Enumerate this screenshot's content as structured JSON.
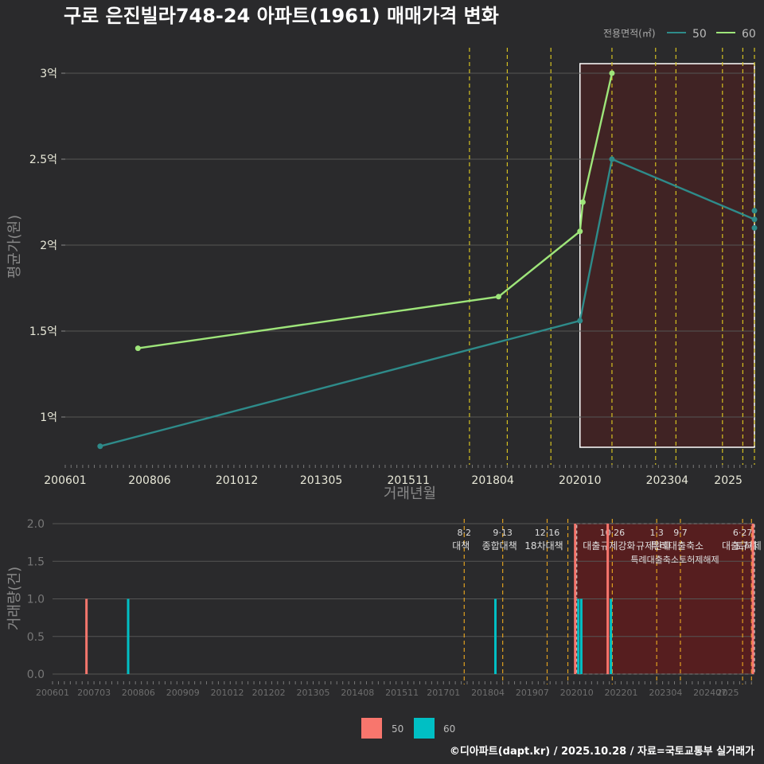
{
  "title": "구로 은진빌라748-24 아파트(1961) 매매가격 변화",
  "legend": {
    "title": "전용면적(㎡)",
    "items": [
      {
        "label": "50",
        "color": "#2e8b8a"
      },
      {
        "label": "60",
        "color": "#9ee57a"
      }
    ]
  },
  "footer": "©디아파트(dapt.kr) / 2025.10.28 / 자료=국토교통부 실거래가",
  "chart_data": [
    {
      "type": "line",
      "ylabel": "평균가(원)",
      "xlabel": "거래년월",
      "ylim": [
        0.75,
        3.1
      ],
      "yticks": [
        {
          "v": 1.0,
          "label": "1억"
        },
        {
          "v": 1.5,
          "label": "1.5억"
        },
        {
          "v": 2.0,
          "label": "2억"
        },
        {
          "v": 2.5,
          "label": "2.5억"
        },
        {
          "v": 3.0,
          "label": "3억"
        }
      ],
      "xrange": [
        "2006-01",
        "2025-10"
      ],
      "xticks": [
        "200601",
        "200806",
        "201012",
        "201305",
        "201511",
        "201804",
        "202010",
        "202304",
        "2025"
      ],
      "series": [
        {
          "name": "50",
          "color": "#2e8b8a",
          "points": [
            {
              "x": "2007-01",
              "y": 0.83
            },
            {
              "x": "2020-10",
              "y": 1.56
            },
            {
              "x": "2021-09",
              "y": 2.5
            },
            {
              "x": "2025-10",
              "y": 2.15
            }
          ],
          "extra_points": [
            {
              "x": "2025-10",
              "y": 2.2
            },
            {
              "x": "2025-10",
              "y": 2.1
            }
          ]
        },
        {
          "name": "60",
          "color": "#9ee57a",
          "points": [
            {
              "x": "2008-02",
              "y": 1.4
            },
            {
              "x": "2018-06",
              "y": 1.7
            },
            {
              "x": "2020-10",
              "y": 2.08
            },
            {
              "x": "2020-11",
              "y": 2.25
            },
            {
              "x": "2021-09",
              "y": 3.0
            }
          ]
        }
      ],
      "event_lines": [
        "2017-08",
        "2018-09",
        "2019-12",
        "2021-09",
        "2022-12",
        "2023-07",
        "2024-11",
        "2025-06",
        "2025-10"
      ],
      "highlight": {
        "from": "2020-10",
        "to": "2025-10"
      }
    },
    {
      "type": "bar",
      "ylabel": "거래량(건)",
      "ylim": [
        0,
        2
      ],
      "yticks": [
        "0.0",
        "0.5",
        "1.0",
        "1.5",
        "2.0"
      ],
      "xticks": [
        "200601",
        "200703",
        "200806",
        "200909",
        "201012",
        "201202",
        "201305",
        "201408",
        "201511",
        "201701",
        "201804",
        "201907",
        "202010",
        "202201",
        "202304",
        "202407",
        "2025"
      ],
      "series": [
        {
          "name": "50",
          "color": "#f8766d",
          "bars": [
            {
              "x": "2007-01",
              "y": 1
            },
            {
              "x": "2020-10",
              "y": 2
            },
            {
              "x": "2021-09",
              "y": 2
            },
            {
              "x": "2025-10",
              "y": 2
            }
          ]
        },
        {
          "name": "60",
          "color": "#00bfc4",
          "bars": [
            {
              "x": "2008-02",
              "y": 1
            },
            {
              "x": "2018-06",
              "y": 1
            },
            {
              "x": "2020-10",
              "y": 1
            },
            {
              "x": "2020-11",
              "y": 1
            },
            {
              "x": "2021-09",
              "y": 1
            }
          ]
        }
      ],
      "events": [
        {
          "x": "2017-08",
          "date": "8·2",
          "label": "대책"
        },
        {
          "x": "2018-09",
          "date": "9·13",
          "label": "종합대책"
        },
        {
          "x": "2019-12",
          "date": "12·16",
          "label": "18차대책"
        },
        {
          "x": "2020-07",
          "date": "",
          "label": ""
        },
        {
          "x": "2021-10",
          "date": "10·26",
          "label": "대출규제강화"
        },
        {
          "x": "2023-01",
          "date": "1·3",
          "label": "규제완화"
        },
        {
          "x": "2023-09",
          "date": "9·7",
          "label": "특례대출축소"
        },
        {
          "x": "2025-06",
          "date": "6·27",
          "label": "대출규제"
        },
        {
          "x": "2025-09",
          "date": "",
          "label": "토허제"
        }
      ],
      "event_sub": [
        "대출규제강화",
        "규제완화",
        "특례대출축소",
        "토허제",
        "해제",
        "대출규제"
      ],
      "highlight": {
        "from": "2020-10",
        "to": "2025-10"
      }
    }
  ]
}
